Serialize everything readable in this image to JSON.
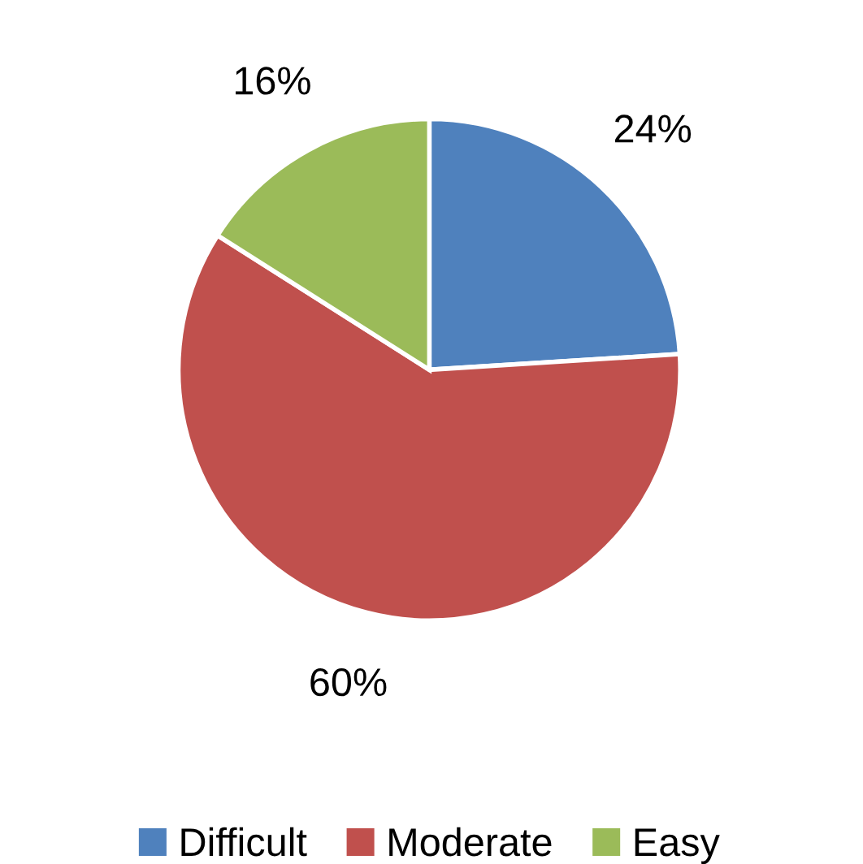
{
  "chart_data": {
    "type": "pie",
    "categories": [
      "Difficult",
      "Moderate",
      "Easy"
    ],
    "values": [
      24,
      60,
      16
    ],
    "colors": [
      "#4f81bd",
      "#c0504d",
      "#9bbb59"
    ],
    "value_labels": [
      "24%",
      "60%",
      "16%"
    ],
    "legend": "bottom"
  }
}
